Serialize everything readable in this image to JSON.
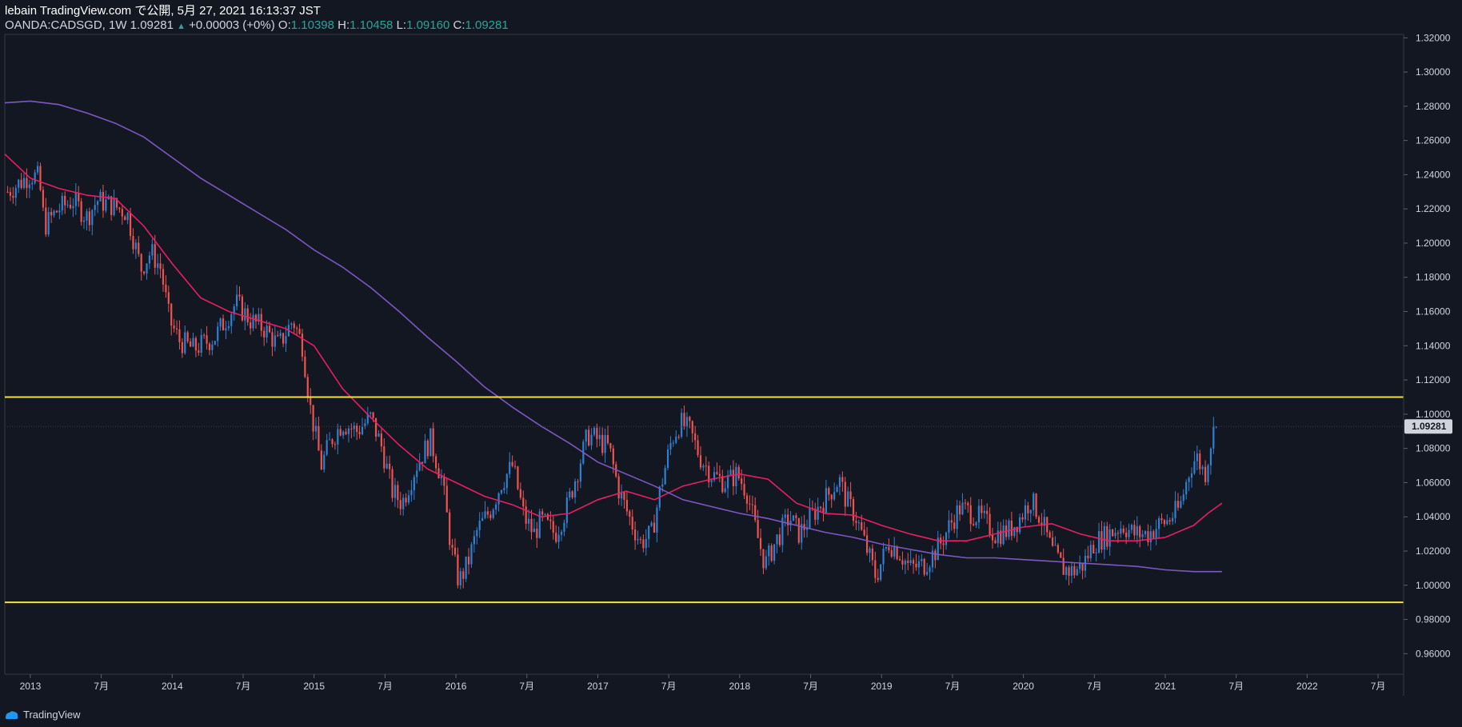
{
  "header": {
    "publish_line": "lebain TradingView.com で公開, 5月 27, 2021 16:13:37 JST",
    "symbol_line": "OANDA:CADSGD, 1W 1.09281",
    "change": "+0.00003 (+0%)",
    "o_label": "O:",
    "o_value": "1.10398",
    "h_label": "H:",
    "h_value": "1.10458",
    "l_label": "L:",
    "l_value": "1.09160",
    "c_label": "C:",
    "c_value": "1.09281"
  },
  "footer": {
    "brand": "TradingView"
  },
  "chart_data": {
    "type": "candlestick",
    "symbol": "OANDA:CADSGD",
    "interval": "1W",
    "last_price": 1.09281,
    "last_price_label": "1.09281",
    "ylim": [
      0.948,
      1.322
    ],
    "y_ticks": [
      0.96,
      0.98,
      1.0,
      1.02,
      1.04,
      1.06,
      1.08,
      1.1,
      1.12,
      1.14,
      1.16,
      1.18,
      1.2,
      1.22,
      1.24,
      1.26,
      1.28,
      1.3,
      1.32
    ],
    "y_tick_labels": [
      "0.96000",
      "0.98000",
      "1.00000",
      "1.02000",
      "1.04000",
      "1.06000",
      "1.08000",
      "1.10000",
      "1.12000",
      "1.14000",
      "1.16000",
      "1.18000",
      "1.20000",
      "1.22000",
      "1.24000",
      "1.26000",
      "1.28000",
      "1.30000",
      "1.32000"
    ],
    "xlim": [
      2012.82,
      2022.68
    ],
    "x_ticks": [
      {
        "t": 2013.0,
        "label": "2013"
      },
      {
        "t": 2013.5,
        "label": "7月"
      },
      {
        "t": 2014.0,
        "label": "2014"
      },
      {
        "t": 2014.5,
        "label": "7月"
      },
      {
        "t": 2015.0,
        "label": "2015"
      },
      {
        "t": 2015.5,
        "label": "7月"
      },
      {
        "t": 2016.0,
        "label": "2016"
      },
      {
        "t": 2016.5,
        "label": "7月"
      },
      {
        "t": 2017.0,
        "label": "2017"
      },
      {
        "t": 2017.5,
        "label": "7月"
      },
      {
        "t": 2018.0,
        "label": "2018"
      },
      {
        "t": 2018.5,
        "label": "7月"
      },
      {
        "t": 2019.0,
        "label": "2019"
      },
      {
        "t": 2019.5,
        "label": "7月"
      },
      {
        "t": 2020.0,
        "label": "2020"
      },
      {
        "t": 2020.5,
        "label": "7月"
      },
      {
        "t": 2021.0,
        "label": "2021"
      },
      {
        "t": 2021.5,
        "label": "7月"
      },
      {
        "t": 2022.0,
        "label": "2022"
      },
      {
        "t": 2022.5,
        "label": "7月"
      }
    ],
    "horizontal_lines": [
      {
        "value": 1.11,
        "color": "#f2e33b"
      },
      {
        "value": 0.99,
        "color": "#f2e33b"
      }
    ],
    "close_path": [
      [
        2012.84,
        1.23
      ],
      [
        2012.92,
        1.235
      ],
      [
        2013.0,
        1.24
      ],
      [
        2013.06,
        1.238
      ],
      [
        2013.1,
        1.21
      ],
      [
        2013.2,
        1.22
      ],
      [
        2013.3,
        1.225
      ],
      [
        2013.4,
        1.215
      ],
      [
        2013.47,
        1.225
      ],
      [
        2013.58,
        1.222
      ],
      [
        2013.68,
        1.218
      ],
      [
        2013.78,
        1.185
      ],
      [
        2013.85,
        1.195
      ],
      [
        2013.92,
        1.185
      ],
      [
        2013.98,
        1.155
      ],
      [
        2014.05,
        1.143
      ],
      [
        2014.15,
        1.138
      ],
      [
        2014.3,
        1.145
      ],
      [
        2014.45,
        1.165
      ],
      [
        2014.55,
        1.155
      ],
      [
        2014.65,
        1.15
      ],
      [
        2014.75,
        1.14
      ],
      [
        2014.85,
        1.155
      ],
      [
        2014.92,
        1.14
      ],
      [
        2014.97,
        1.105
      ],
      [
        2015.05,
        1.07
      ],
      [
        2015.12,
        1.085
      ],
      [
        2015.2,
        1.095
      ],
      [
        2015.3,
        1.09
      ],
      [
        2015.4,
        1.098
      ],
      [
        2015.48,
        1.08
      ],
      [
        2015.55,
        1.055
      ],
      [
        2015.62,
        1.048
      ],
      [
        2015.72,
        1.07
      ],
      [
        2015.82,
        1.085
      ],
      [
        2015.9,
        1.062
      ],
      [
        2015.97,
        1.02
      ],
      [
        2016.02,
        1.002
      ],
      [
        2016.08,
        1.012
      ],
      [
        2016.15,
        1.032
      ],
      [
        2016.25,
        1.045
      ],
      [
        2016.32,
        1.06
      ],
      [
        2016.4,
        1.07
      ],
      [
        2016.48,
        1.04
      ],
      [
        2016.55,
        1.03
      ],
      [
        2016.6,
        1.038
      ],
      [
        2016.7,
        1.03
      ],
      [
        2016.78,
        1.045
      ],
      [
        2016.85,
        1.065
      ],
      [
        2016.93,
        1.088
      ],
      [
        2017.0,
        1.085
      ],
      [
        2017.08,
        1.08
      ],
      [
        2017.15,
        1.055
      ],
      [
        2017.22,
        1.04
      ],
      [
        2017.3,
        1.025
      ],
      [
        2017.38,
        1.03
      ],
      [
        2017.45,
        1.06
      ],
      [
        2017.52,
        1.085
      ],
      [
        2017.58,
        1.095
      ],
      [
        2017.65,
        1.09
      ],
      [
        2017.72,
        1.075
      ],
      [
        2017.8,
        1.065
      ],
      [
        2017.9,
        1.06
      ],
      [
        2017.98,
        1.065
      ],
      [
        2018.05,
        1.055
      ],
      [
        2018.12,
        1.03
      ],
      [
        2018.18,
        1.012
      ],
      [
        2018.25,
        1.025
      ],
      [
        2018.35,
        1.04
      ],
      [
        2018.42,
        1.03
      ],
      [
        2018.5,
        1.04
      ],
      [
        2018.6,
        1.05
      ],
      [
        2018.7,
        1.062
      ],
      [
        2018.75,
        1.05
      ],
      [
        2018.82,
        1.04
      ],
      [
        2018.9,
        1.02
      ],
      [
        2018.96,
        1.005
      ],
      [
        2019.05,
        1.025
      ],
      [
        2019.12,
        1.02
      ],
      [
        2019.2,
        1.01
      ],
      [
        2019.3,
        1.012
      ],
      [
        2019.4,
        1.022
      ],
      [
        2019.48,
        1.035
      ],
      [
        2019.55,
        1.045
      ],
      [
        2019.62,
        1.043
      ],
      [
        2019.72,
        1.038
      ],
      [
        2019.8,
        1.03
      ],
      [
        2019.9,
        1.032
      ],
      [
        2019.98,
        1.04
      ],
      [
        2020.05,
        1.05
      ],
      [
        2020.12,
        1.04
      ],
      [
        2020.2,
        1.02
      ],
      [
        2020.28,
        1.01
      ],
      [
        2020.35,
        1.008
      ],
      [
        2020.42,
        1.012
      ],
      [
        2020.5,
        1.025
      ],
      [
        2020.6,
        1.03
      ],
      [
        2020.7,
        1.035
      ],
      [
        2020.78,
        1.03
      ],
      [
        2020.88,
        1.03
      ],
      [
        2020.95,
        1.035
      ],
      [
        2021.02,
        1.038
      ],
      [
        2021.1,
        1.045
      ],
      [
        2021.18,
        1.07
      ],
      [
        2021.22,
        1.075
      ],
      [
        2021.28,
        1.065
      ],
      [
        2021.33,
        1.088
      ],
      [
        2021.36,
        1.0928
      ]
    ],
    "series": [
      {
        "name": "",
        "color": "#e91e63",
        "points": [
          [
            2012.82,
            1.252
          ],
          [
            2013.0,
            1.238
          ],
          [
            2013.2,
            1.232
          ],
          [
            2013.4,
            1.228
          ],
          [
            2013.6,
            1.226
          ],
          [
            2013.8,
            1.21
          ],
          [
            2014.0,
            1.188
          ],
          [
            2014.2,
            1.168
          ],
          [
            2014.4,
            1.16
          ],
          [
            2014.6,
            1.155
          ],
          [
            2014.8,
            1.15
          ],
          [
            2015.0,
            1.14
          ],
          [
            2015.2,
            1.115
          ],
          [
            2015.4,
            1.098
          ],
          [
            2015.6,
            1.082
          ],
          [
            2015.8,
            1.068
          ],
          [
            2016.0,
            1.06
          ],
          [
            2016.2,
            1.052
          ],
          [
            2016.4,
            1.047
          ],
          [
            2016.6,
            1.04
          ],
          [
            2016.8,
            1.042
          ],
          [
            2017.0,
            1.05
          ],
          [
            2017.2,
            1.055
          ],
          [
            2017.4,
            1.05
          ],
          [
            2017.6,
            1.058
          ],
          [
            2017.8,
            1.062
          ],
          [
            2018.0,
            1.065
          ],
          [
            2018.2,
            1.062
          ],
          [
            2018.4,
            1.048
          ],
          [
            2018.6,
            1.042
          ],
          [
            2018.8,
            1.041
          ],
          [
            2019.0,
            1.035
          ],
          [
            2019.2,
            1.03
          ],
          [
            2019.4,
            1.026
          ],
          [
            2019.6,
            1.026
          ],
          [
            2019.8,
            1.03
          ],
          [
            2020.0,
            1.034
          ],
          [
            2020.2,
            1.036
          ],
          [
            2020.4,
            1.03
          ],
          [
            2020.6,
            1.026
          ],
          [
            2020.8,
            1.026
          ],
          [
            2021.0,
            1.028
          ],
          [
            2021.2,
            1.035
          ],
          [
            2021.3,
            1.042
          ],
          [
            2021.4,
            1.048
          ]
        ]
      },
      {
        "name": "",
        "color": "#7e57c2",
        "points": [
          [
            2012.82,
            1.282
          ],
          [
            2013.0,
            1.283
          ],
          [
            2013.2,
            1.281
          ],
          [
            2013.4,
            1.276
          ],
          [
            2013.6,
            1.27
          ],
          [
            2013.8,
            1.262
          ],
          [
            2014.0,
            1.25
          ],
          [
            2014.2,
            1.238
          ],
          [
            2014.4,
            1.228
          ],
          [
            2014.6,
            1.218
          ],
          [
            2014.8,
            1.208
          ],
          [
            2015.0,
            1.196
          ],
          [
            2015.2,
            1.186
          ],
          [
            2015.4,
            1.174
          ],
          [
            2015.6,
            1.16
          ],
          [
            2015.8,
            1.145
          ],
          [
            2016.0,
            1.131
          ],
          [
            2016.2,
            1.116
          ],
          [
            2016.4,
            1.104
          ],
          [
            2016.6,
            1.093
          ],
          [
            2016.8,
            1.083
          ],
          [
            2017.0,
            1.072
          ],
          [
            2017.2,
            1.065
          ],
          [
            2017.4,
            1.058
          ],
          [
            2017.6,
            1.05
          ],
          [
            2017.8,
            1.046
          ],
          [
            2018.0,
            1.042
          ],
          [
            2018.2,
            1.039
          ],
          [
            2018.4,
            1.035
          ],
          [
            2018.6,
            1.031
          ],
          [
            2018.8,
            1.028
          ],
          [
            2019.0,
            1.024
          ],
          [
            2019.2,
            1.021
          ],
          [
            2019.4,
            1.018
          ],
          [
            2019.6,
            1.016
          ],
          [
            2019.8,
            1.016
          ],
          [
            2020.0,
            1.015
          ],
          [
            2020.2,
            1.014
          ],
          [
            2020.4,
            1.013
          ],
          [
            2020.6,
            1.012
          ],
          [
            2020.8,
            1.011
          ],
          [
            2021.0,
            1.009
          ],
          [
            2021.2,
            1.008
          ],
          [
            2021.4,
            1.008
          ]
        ]
      }
    ],
    "colors": {
      "up": "#2f80d1",
      "down": "#ef5350",
      "background": "#131722",
      "grid": "#2a2e39"
    }
  }
}
